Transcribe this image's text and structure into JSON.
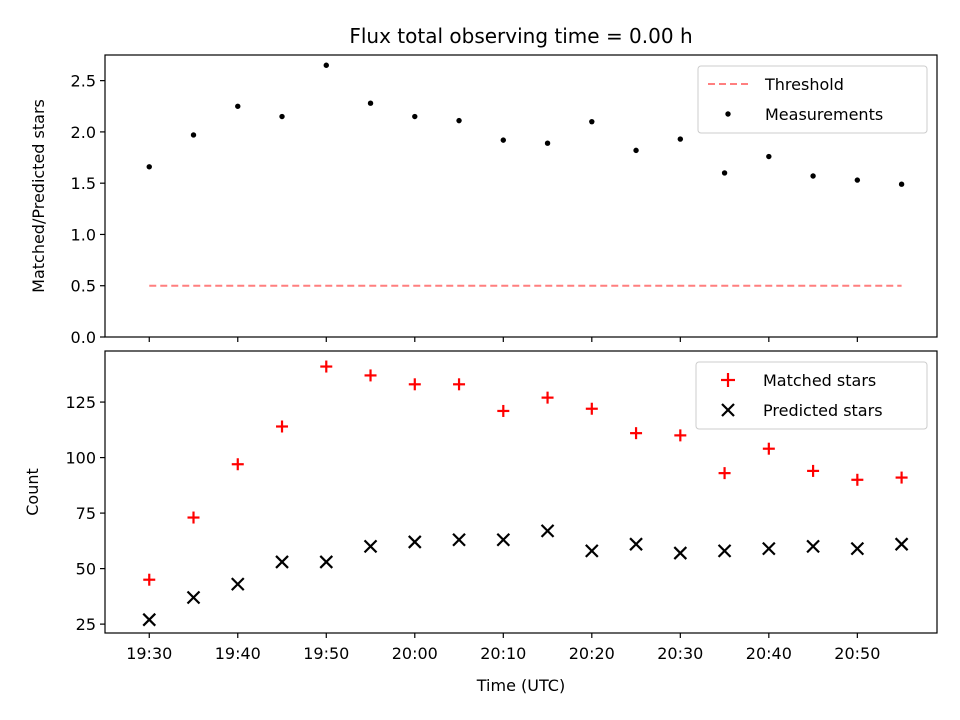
{
  "chart_data": [
    {
      "type": "scatter",
      "title": "Flux total observing time = 0.00 h",
      "ylabel": "Matched/Predicted stars",
      "xlabel": "",
      "xlim": [
        "19:25",
        "20:59"
      ],
      "ylim": [
        0,
        2.75
      ],
      "yticks": [
        "0.0",
        "0.5",
        "1.0",
        "1.5",
        "2.0",
        "2.5"
      ],
      "legend_position": "top-right",
      "series": [
        {
          "name": "Threshold",
          "kind": "dashed-line",
          "color": "#ff7f7f",
          "x": [
            "19:30",
            "20:55"
          ],
          "y": [
            0.5,
            0.5
          ]
        },
        {
          "name": "Measurements",
          "kind": "dot",
          "color": "#000000",
          "x": [
            "19:30",
            "19:35",
            "19:40",
            "19:45",
            "19:50",
            "19:55",
            "20:00",
            "20:05",
            "20:10",
            "20:15",
            "20:20",
            "20:25",
            "20:30",
            "20:35",
            "20:40",
            "20:45",
            "20:50",
            "20:55"
          ],
          "y": [
            1.66,
            1.97,
            2.25,
            2.15,
            2.65,
            2.28,
            2.15,
            2.11,
            1.92,
            1.89,
            2.1,
            1.82,
            1.93,
            1.6,
            1.76,
            1.57,
            1.53,
            1.49
          ]
        }
      ]
    },
    {
      "type": "scatter",
      "title": "",
      "ylabel": "Count",
      "xlabel": "Time (UTC)",
      "xlim": [
        "19:25",
        "20:59"
      ],
      "ylim": [
        21,
        148
      ],
      "yticks": [
        "25",
        "50",
        "75",
        "100",
        "125"
      ],
      "xticks": [
        "19:30",
        "19:40",
        "19:50",
        "20:00",
        "20:10",
        "20:20",
        "20:30",
        "20:40",
        "20:50"
      ],
      "legend_position": "top-right",
      "series": [
        {
          "name": "Matched stars",
          "kind": "plus",
          "color": "#ff0000",
          "x": [
            "19:30",
            "19:35",
            "19:40",
            "19:45",
            "19:50",
            "19:55",
            "20:00",
            "20:05",
            "20:10",
            "20:15",
            "20:20",
            "20:25",
            "20:30",
            "20:35",
            "20:40",
            "20:45",
            "20:50",
            "20:55"
          ],
          "y": [
            45,
            73,
            97,
            114,
            141,
            137,
            133,
            133,
            121,
            127,
            122,
            111,
            110,
            93,
            104,
            94,
            90,
            91
          ]
        },
        {
          "name": "Predicted stars",
          "kind": "cross",
          "color": "#000000",
          "x": [
            "19:30",
            "19:35",
            "19:40",
            "19:45",
            "19:50",
            "19:55",
            "20:00",
            "20:05",
            "20:10",
            "20:15",
            "20:20",
            "20:25",
            "20:30",
            "20:35",
            "20:40",
            "20:45",
            "20:50",
            "20:55"
          ],
          "y": [
            27,
            37,
            43,
            53,
            53,
            60,
            62,
            63,
            63,
            67,
            58,
            61,
            57,
            58,
            59,
            60,
            59,
            61
          ]
        }
      ]
    }
  ]
}
